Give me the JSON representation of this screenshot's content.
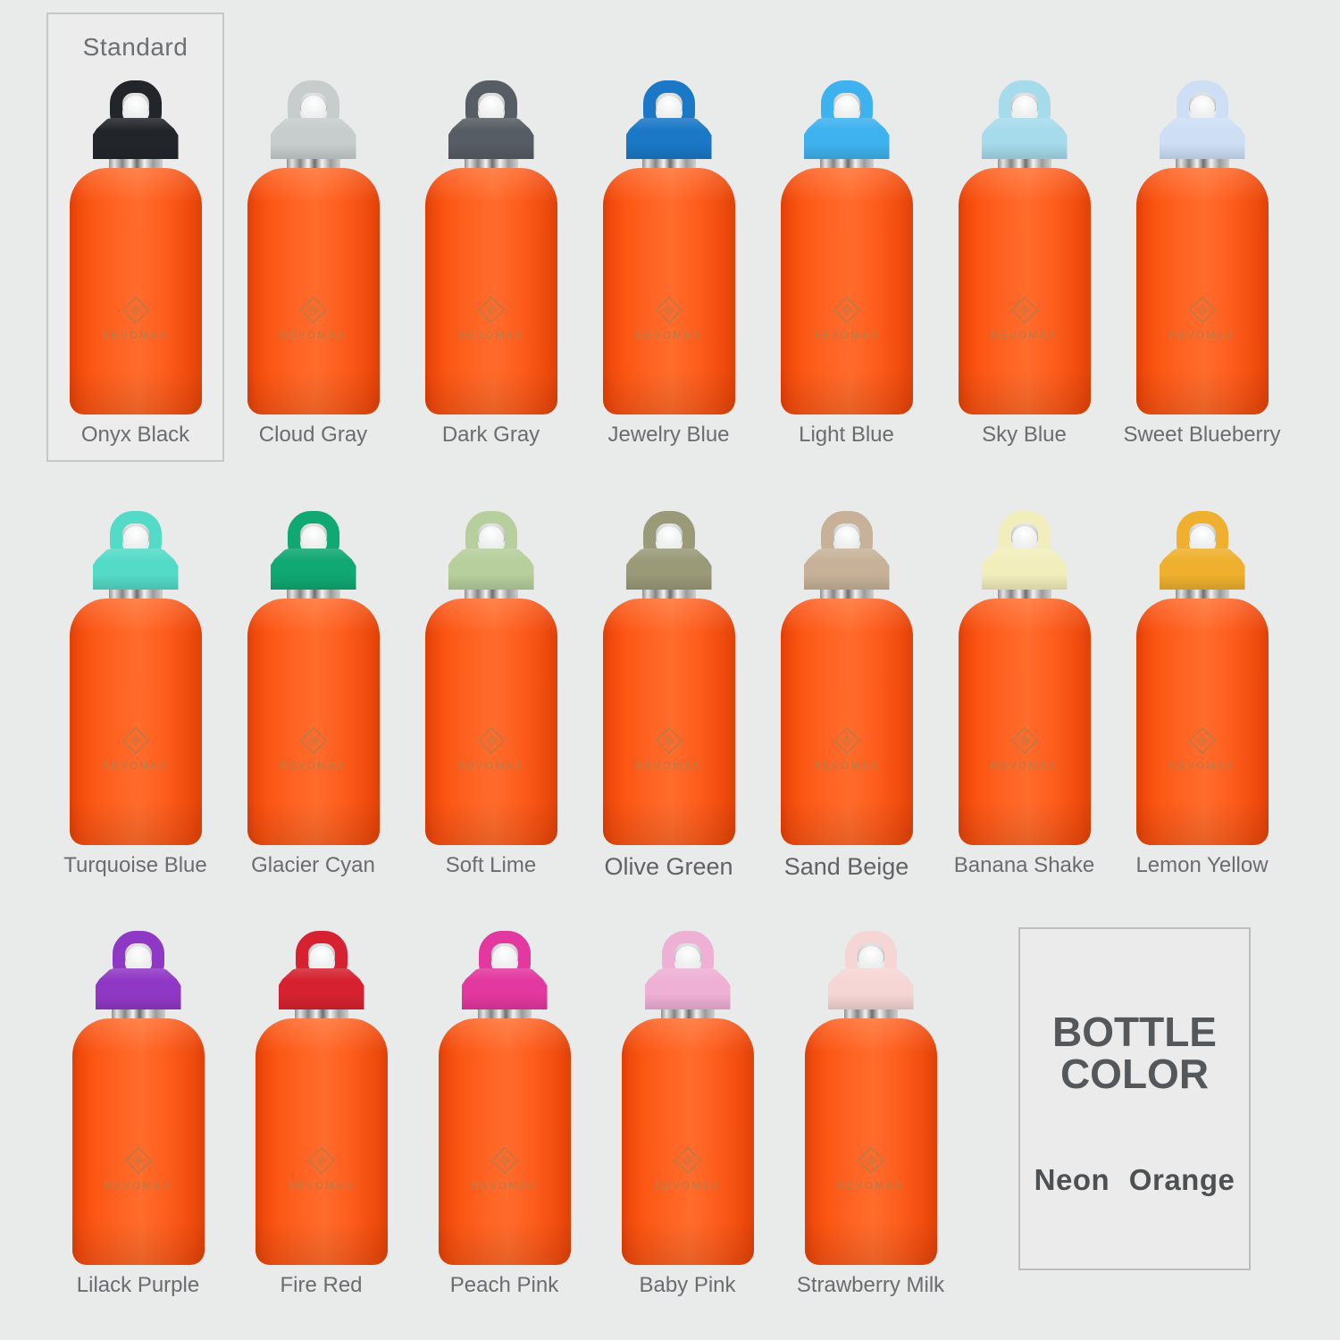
{
  "page": {
    "background_color": "#e9eaea",
    "label_text_color": "#696d70"
  },
  "standard_box": {
    "label": "Standard",
    "border_color": "#c6c7c7"
  },
  "brand": {
    "logo_text": "REVOMAX",
    "logo_mark": "diamond-icon",
    "cap_badge": "pull-lock-ring-badge"
  },
  "bottle": {
    "body_color_name": "Neon Orange",
    "body_color": "#fb5a1d",
    "neck_color": "#d9d9d9"
  },
  "bottle_color_box": {
    "title_line1": "BOTTLE",
    "title_line2": "COLOR",
    "color_name": "Neon Orange"
  },
  "rows": [
    {
      "items": [
        {
          "name": "Onyx Black",
          "cap_color": "#22262b",
          "standard": true
        },
        {
          "name": "Cloud Gray",
          "cap_color": "#c7cdcd"
        },
        {
          "name": "Dark Gray",
          "cap_color": "#575d64"
        },
        {
          "name": "Jewelry Blue",
          "cap_color": "#1a78c6"
        },
        {
          "name": "Light Blue",
          "cap_color": "#3eb2ee"
        },
        {
          "name": "Sky Blue",
          "cap_color": "#a6dbec"
        },
        {
          "name": "Sweet Blueberry",
          "cap_color": "#cedff5"
        }
      ]
    },
    {
      "items": [
        {
          "name": "Turquoise Blue",
          "cap_color": "#54dbc7"
        },
        {
          "name": "Glacier Cyan",
          "cap_color": "#10a873"
        },
        {
          "name": "Soft Lime",
          "cap_color": "#b6cf9c"
        },
        {
          "name": "Olive Green",
          "cap_color": "#9a9a79",
          "emph": true
        },
        {
          "name": "Sand Beige",
          "cap_color": "#c7b299",
          "emph": true
        },
        {
          "name": "Banana Shake",
          "cap_color": "#f2eebc"
        },
        {
          "name": "Lemon Yellow",
          "cap_color": "#eeb02e"
        }
      ]
    },
    {
      "items": [
        {
          "name": "Lilack Purple",
          "cap_color": "#9038c6"
        },
        {
          "name": "Fire Red",
          "cap_color": "#d62230"
        },
        {
          "name": "Peach Pink",
          "cap_color": "#e3389f"
        },
        {
          "name": "Baby Pink",
          "cap_color": "#eeb0d5"
        },
        {
          "name": "Strawberry Milk",
          "cap_color": "#f6d6d5"
        }
      ]
    }
  ]
}
